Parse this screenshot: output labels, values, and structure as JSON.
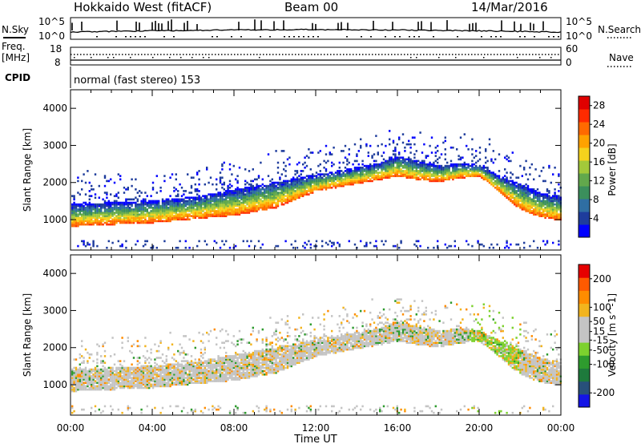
{
  "header": {
    "station": "Hokkaido West (fitACF)",
    "beam": "Beam 00",
    "date": "14/Mar/2016"
  },
  "noise_panel": {
    "left_label": "N.Sky",
    "right_label": "N.Search",
    "left_ticks": [
      "10^5",
      "10^0"
    ],
    "right_ticks": [
      "10^5",
      "10^0"
    ]
  },
  "freq_panel": {
    "left_label_1": "Freq.",
    "left_label_2": "[MHz]",
    "right_label": "Nave",
    "left_ticks": [
      "18",
      "8"
    ],
    "right_ticks": [
      "60",
      "0"
    ]
  },
  "cpid_panel": {
    "label": "CPID",
    "text": "normal (fast stereo) 153"
  },
  "colors": {
    "power_scale": [
      "#0000ff",
      "#1e3c9c",
      "#2f6ea3",
      "#3b8f5c",
      "#62a84c",
      "#a3c93a",
      "#f5d21d",
      "#ffa200",
      "#ff6a00",
      "#ff2b00",
      "#e00000"
    ],
    "velocity_scale": [
      "#1414e6",
      "#28507a",
      "#1e7a3c",
      "#2e9b2e",
      "#7dd12e",
      "#c4c4c4",
      "#c4c4c4",
      "#f2b41e",
      "#ff8c00",
      "#ff5a00",
      "#e60000"
    ],
    "ground_scatter": "#c4c4c4"
  },
  "chart_data": [
    {
      "type": "heatmap",
      "name": "power",
      "ylabel": "Slant Range [km]",
      "x_ticks": [
        "00:00",
        "04:00",
        "08:00",
        "12:00",
        "16:00",
        "20:00",
        "00:00"
      ],
      "y_ticks": [
        1000,
        2000,
        3000,
        4000
      ],
      "ylim": [
        180,
        4500
      ],
      "xlim_hours": [
        0,
        24
      ],
      "colorbar": {
        "label": "Power [dB]",
        "ticks": [
          4,
          8,
          12,
          16,
          20,
          24,
          28
        ],
        "range": [
          0,
          30
        ]
      },
      "scatter_band": {
        "hours": [
          0,
          2,
          4,
          6,
          8,
          10,
          12,
          13,
          14,
          15,
          16,
          17,
          18,
          19,
          20,
          21,
          22,
          23,
          24
        ],
        "inner_edge_km": [
          800,
          850,
          900,
          1000,
          1100,
          1300,
          1750,
          1850,
          1950,
          2050,
          2150,
          2050,
          2000,
          2100,
          2150,
          1700,
          1250,
          1050,
          950
        ],
        "outer_edge_km": [
          1400,
          1450,
          1500,
          1600,
          1800,
          2000,
          2200,
          2300,
          2400,
          2500,
          2700,
          2550,
          2450,
          2500,
          2450,
          2150,
          1950,
          1700,
          1600
        ]
      }
    },
    {
      "type": "heatmap",
      "name": "velocity",
      "ylabel": "Slant Range [km]",
      "xlabel": "Time UT",
      "x_ticks": [
        "00:00",
        "04:00",
        "08:00",
        "12:00",
        "16:00",
        "20:00",
        "00:00"
      ],
      "y_ticks": [
        1000,
        2000,
        3000,
        4000
      ],
      "ylim": [
        180,
        4500
      ],
      "xlim_hours": [
        0,
        24
      ],
      "colorbar": {
        "label": "Velocity [m s^-1]",
        "ticks": [
          200,
          100,
          50,
          15,
          -15,
          -50,
          -100,
          -200
        ],
        "range": [
          -250,
          250
        ]
      },
      "scatter_band": {
        "hours": [
          0,
          2,
          4,
          6,
          8,
          10,
          12,
          13,
          14,
          15,
          16,
          17,
          18,
          19,
          20,
          21,
          22,
          23,
          24
        ],
        "inner_edge_km": [
          800,
          850,
          900,
          1000,
          1100,
          1300,
          1750,
          1850,
          1950,
          2050,
          2150,
          2050,
          2000,
          2100,
          2150,
          1700,
          1250,
          1050,
          950
        ],
        "outer_edge_km": [
          1400,
          1450,
          1500,
          1600,
          1800,
          2000,
          2200,
          2300,
          2400,
          2500,
          2700,
          2550,
          2450,
          2500,
          2450,
          2150,
          1950,
          1700,
          1600
        ]
      }
    }
  ]
}
